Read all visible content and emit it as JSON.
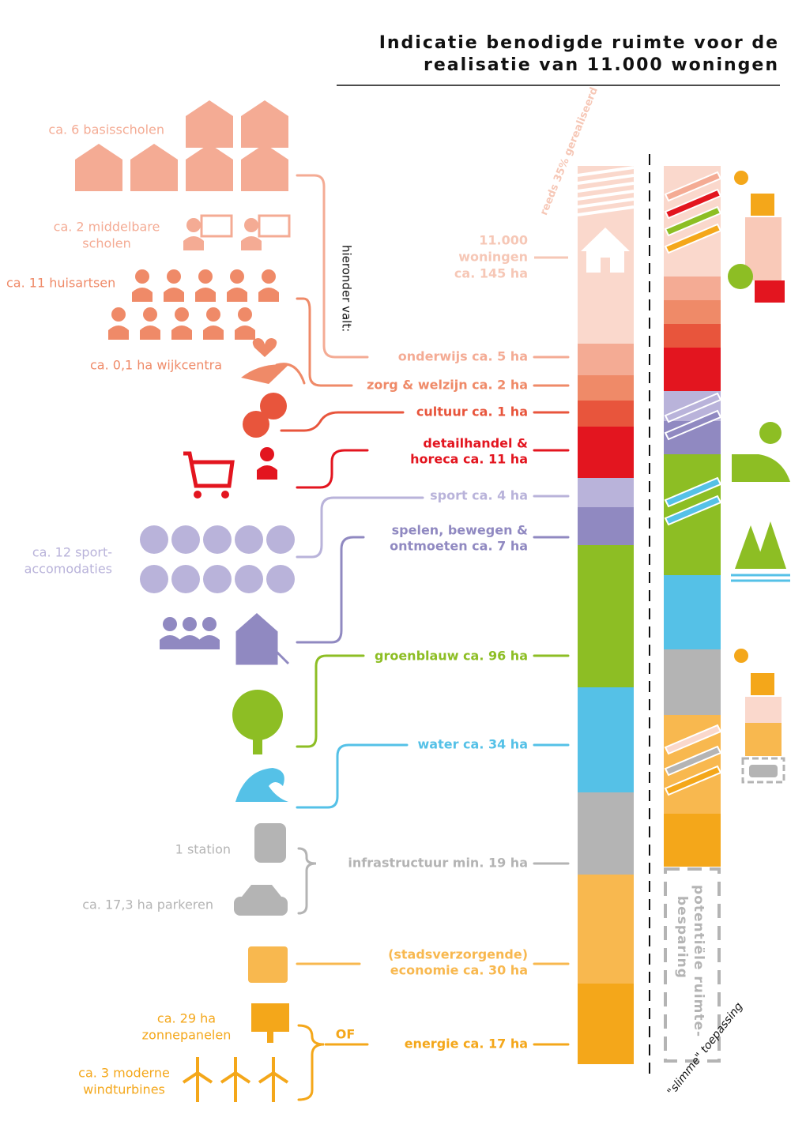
{
  "header": {
    "title": [
      "Indicatie benodigde ruimte voor de",
      "realisatie van 11.000 woningen"
    ]
  },
  "bar_labels": [
    [
      "11.000",
      "woningen",
      "ca. 145 ha"
    ],
    [
      "onderwijs ca. 5 ha"
    ],
    [
      "zorg & welzijn ca. 2 ha"
    ],
    [
      "cultuur ca. 1 ha"
    ],
    [
      "detailhandel &",
      "horeca ca. 11 ha"
    ],
    [
      "sport ca. 4 ha"
    ],
    [
      "spelen, bewegen &",
      "ontmoeten ca. 7 ha"
    ],
    [
      "groenblauw ca. 96 ha"
    ],
    [
      "water ca. 34 ha"
    ],
    [
      "infrastructuur min. 19 ha"
    ],
    [
      "(stadsverzorgende)",
      "economie ca. 30 ha"
    ],
    [
      "energie  ca. 17 ha"
    ]
  ],
  "left_labels": [
    [
      "ca. 6 basisscholen"
    ],
    [
      "ca. 2 middelbare",
      "scholen"
    ],
    [
      "ca. 11 huisartsen"
    ],
    [
      "ca. 0,1 ha wijkcentra"
    ],
    [
      "ca. 12 sport-",
      "accomodaties"
    ],
    [
      "1 station"
    ],
    [
      "ca. 17,3 ha parkeren"
    ],
    [
      "ca. 29 ha",
      "zonnepanelen"
    ],
    [
      "ca. 3 moderne",
      "windturbines"
    ]
  ],
  "annotations": {
    "realized": "reeds 35% gerealiseerd",
    "includes": "hieronder valt:",
    "or": "OF",
    "saving": [
      "potentiële ruimte-",
      "besparing"
    ],
    "smart": "\"slimme\" toepassing"
  }
}
